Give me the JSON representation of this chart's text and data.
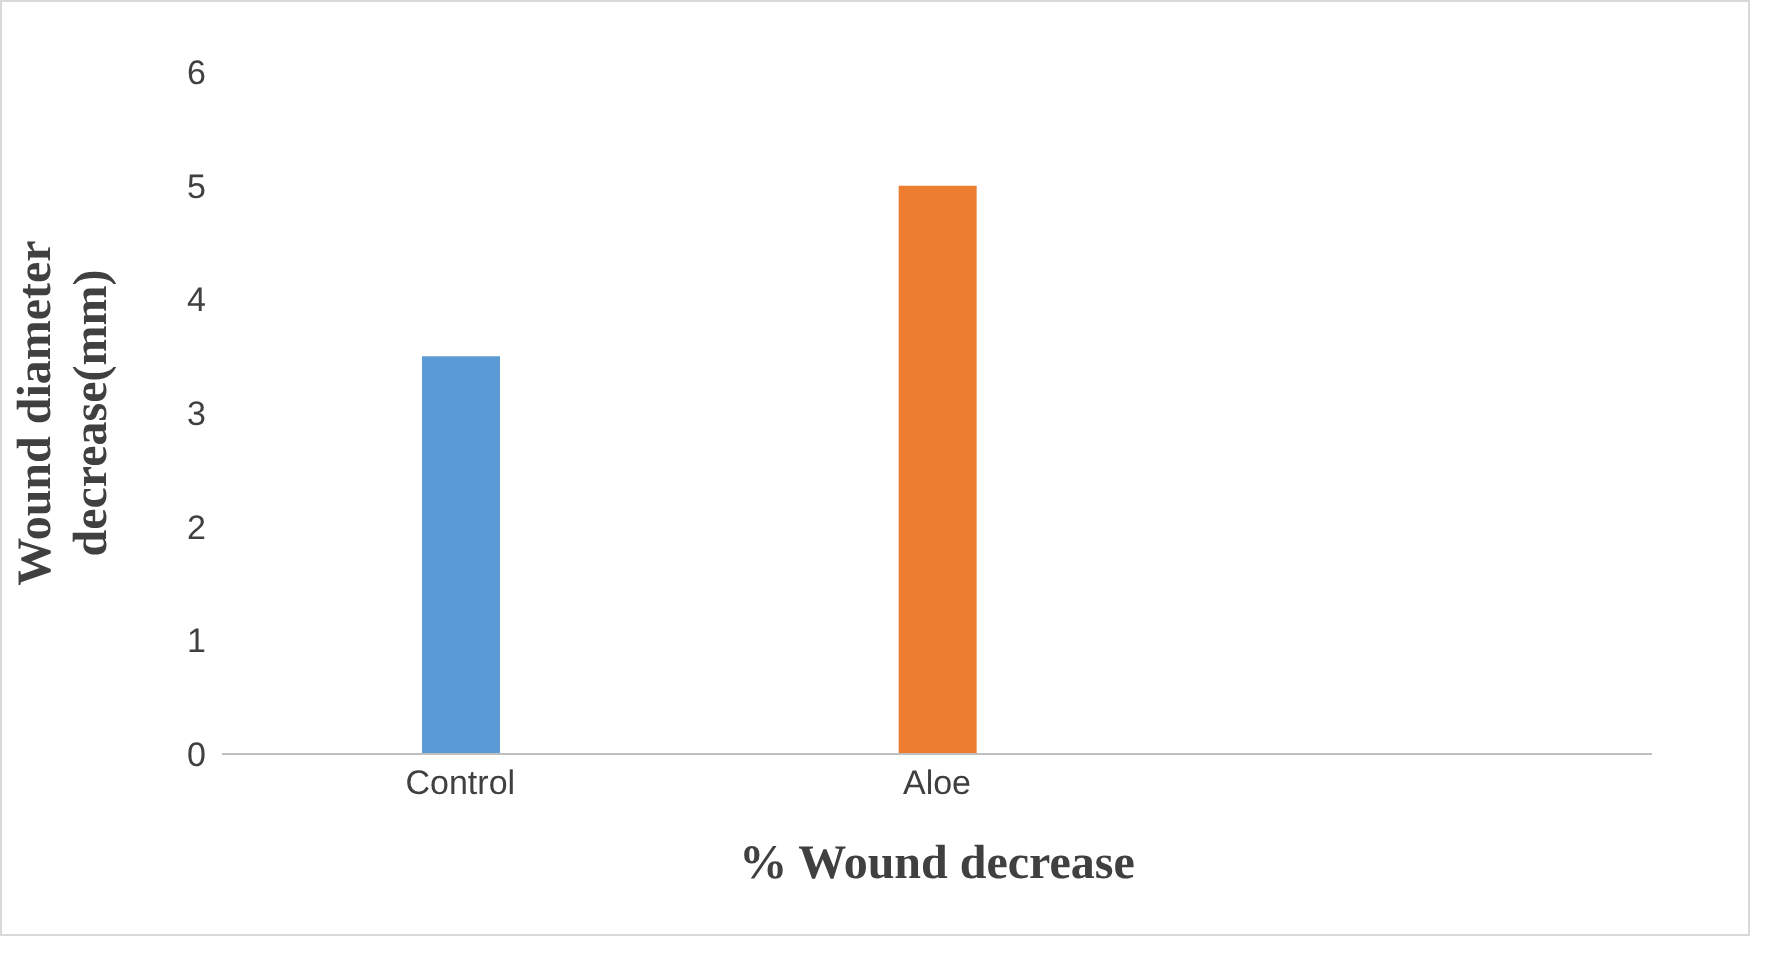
{
  "chart_data": {
    "type": "bar",
    "xlabel": "% Wound decrease",
    "ylabel": "Wound diameter decrease(mm)",
    "categories": [
      "Control",
      "Aloe",
      null
    ],
    "values": [
      3.5,
      5,
      null
    ],
    "colors": [
      "#5b9bd5",
      "#ed7d31",
      "#a5a5a5"
    ],
    "ylim": [
      0,
      6
    ],
    "yticks": [
      0,
      1,
      2,
      3,
      4,
      5,
      6
    ],
    "grid": false,
    "legend": false
  }
}
